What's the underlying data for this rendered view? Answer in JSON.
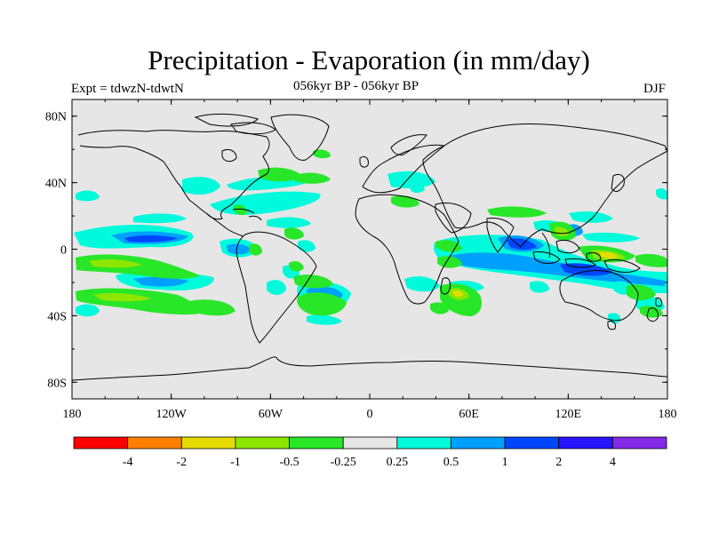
{
  "header": {
    "title": "Precipitation - Evaporation (in mm/day)",
    "left_label": "Expt = tdwzN-tdwtN",
    "center_label": "056kyr BP - 056kyr BP",
    "right_label": "DJF"
  },
  "map": {
    "projection": "cylindrical-equidistant",
    "background_color": "#e6e6e6",
    "coastline_color": "#000000",
    "lon_range": [
      -180,
      180
    ],
    "lat_range": [
      -90,
      90
    ],
    "lon_ticks": [
      {
        "value": -180,
        "label": "180"
      },
      {
        "value": -120,
        "label": "120W"
      },
      {
        "value": -60,
        "label": "60W"
      },
      {
        "value": 0,
        "label": "0"
      },
      {
        "value": 60,
        "label": "60E"
      },
      {
        "value": 120,
        "label": "120E"
      },
      {
        "value": 180,
        "label": "180"
      }
    ],
    "lat_ticks": [
      {
        "value": 80,
        "label": "80N"
      },
      {
        "value": 40,
        "label": "40N"
      },
      {
        "value": 0,
        "label": "0"
      },
      {
        "value": -40,
        "label": "40S"
      },
      {
        "value": -80,
        "label": "80S"
      }
    ]
  },
  "colorbar": {
    "colors": [
      "#ff0000",
      "#ff8000",
      "#e6dc00",
      "#8ce600",
      "#28e628",
      "#e6e6e6",
      "#00fadc",
      "#00a0ff",
      "#0046ff",
      "#2814ff",
      "#8228e6"
    ],
    "labels": [
      "-4",
      "-2",
      "-1",
      "-0.5",
      "-0.25",
      "0.25",
      "0.5",
      "1",
      "2",
      "4"
    ]
  },
  "fields": {
    "levels": [
      {
        "name": "0.25 to 0.5",
        "color": "#00fadc"
      },
      {
        "name": "0.5 to 1",
        "color": "#00a0ff"
      },
      {
        "name": "1 to 2",
        "color": "#0046ff"
      },
      {
        "name": "-0.5 to -0.25",
        "color": "#28e628"
      },
      {
        "name": "-1 to -0.5",
        "color": "#8ce600"
      },
      {
        "name": "-2 to -1",
        "color": "#e6dc00"
      }
    ]
  }
}
